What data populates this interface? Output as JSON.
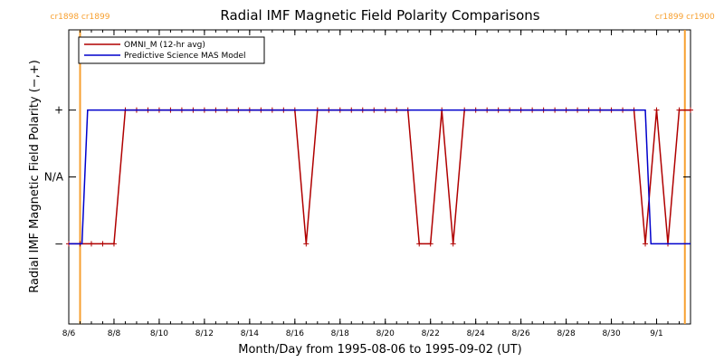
{
  "chart_data": {
    "type": "line",
    "title": "Radial IMF Magnetic Field Polarity Comparisons",
    "xlabel": "Month/Day from 1995-08-06 to 1995-09-02 (UT)",
    "ylabel": "Radial IMF Magnetic Field Polarity (−,+)",
    "xlim": [
      "1995-08-06T00:00",
      "1995-09-02T12:00"
    ],
    "y_ticks": [
      {
        "value": 1,
        "label": "+"
      },
      {
        "value": 0,
        "label": "N/A"
      },
      {
        "value": -1,
        "label": "−"
      }
    ],
    "ylim": [
      -2.2,
      2.2
    ],
    "x_ticks": [
      {
        "date": "1995-08-06",
        "label": "8/6"
      },
      {
        "date": "1995-08-08",
        "label": "8/8"
      },
      {
        "date": "1995-08-10",
        "label": "8/10"
      },
      {
        "date": "1995-08-12",
        "label": "8/12"
      },
      {
        "date": "1995-08-14",
        "label": "8/14"
      },
      {
        "date": "1995-08-16",
        "label": "8/16"
      },
      {
        "date": "1995-08-18",
        "label": "8/18"
      },
      {
        "date": "1995-08-20",
        "label": "8/20"
      },
      {
        "date": "1995-08-22",
        "label": "8/22"
      },
      {
        "date": "1995-08-24",
        "label": "8/24"
      },
      {
        "date": "1995-08-26",
        "label": "8/26"
      },
      {
        "date": "1995-08-28",
        "label": "8/28"
      },
      {
        "date": "1995-08-30",
        "label": "8/30"
      },
      {
        "date": "1995-09-01",
        "label": "9/1"
      }
    ],
    "carrington_markers": [
      {
        "date": "1995-08-06T12:00",
        "left_label": "cr1898",
        "right_label": "cr1899"
      },
      {
        "date": "1995-09-02T06:00",
        "left_label": "cr1899",
        "right_label": "cr1900"
      }
    ],
    "legend": {
      "position": "top-left"
    },
    "series": [
      {
        "name": "OMNI_M (12-hr avg)",
        "color": "#b00000",
        "markers": "plus",
        "points": [
          [
            "1995-08-06T00:00",
            -1
          ],
          [
            "1995-08-06T12:00",
            -1
          ],
          [
            "1995-08-07T00:00",
            -1
          ],
          [
            "1995-08-07T12:00",
            -1
          ],
          [
            "1995-08-08T00:00",
            -1
          ],
          [
            "1995-08-08T12:00",
            1
          ],
          [
            "1995-08-09T00:00",
            1
          ],
          [
            "1995-08-09T12:00",
            1
          ],
          [
            "1995-08-10T00:00",
            1
          ],
          [
            "1995-08-10T12:00",
            1
          ],
          [
            "1995-08-11T00:00",
            1
          ],
          [
            "1995-08-11T12:00",
            1
          ],
          [
            "1995-08-12T00:00",
            1
          ],
          [
            "1995-08-12T12:00",
            1
          ],
          [
            "1995-08-13T00:00",
            1
          ],
          [
            "1995-08-13T12:00",
            1
          ],
          [
            "1995-08-14T00:00",
            1
          ],
          [
            "1995-08-14T12:00",
            1
          ],
          [
            "1995-08-15T00:00",
            1
          ],
          [
            "1995-08-15T12:00",
            1
          ],
          [
            "1995-08-16T00:00",
            1
          ],
          [
            "1995-08-16T12:00",
            -1
          ],
          [
            "1995-08-17T00:00",
            1
          ],
          [
            "1995-08-17T12:00",
            1
          ],
          [
            "1995-08-18T00:00",
            1
          ],
          [
            "1995-08-18T12:00",
            1
          ],
          [
            "1995-08-19T00:00",
            1
          ],
          [
            "1995-08-19T12:00",
            1
          ],
          [
            "1995-08-20T00:00",
            1
          ],
          [
            "1995-08-20T12:00",
            1
          ],
          [
            "1995-08-21T00:00",
            1
          ],
          [
            "1995-08-21T12:00",
            -1
          ],
          [
            "1995-08-22T00:00",
            -1
          ],
          [
            "1995-08-22T12:00",
            1
          ],
          [
            "1995-08-23T00:00",
            -1
          ],
          [
            "1995-08-23T12:00",
            1
          ],
          [
            "1995-08-24T00:00",
            1
          ],
          [
            "1995-08-24T12:00",
            1
          ],
          [
            "1995-08-25T00:00",
            1
          ],
          [
            "1995-08-25T12:00",
            1
          ],
          [
            "1995-08-26T00:00",
            1
          ],
          [
            "1995-08-26T12:00",
            1
          ],
          [
            "1995-08-27T00:00",
            1
          ],
          [
            "1995-08-27T12:00",
            1
          ],
          [
            "1995-08-28T00:00",
            1
          ],
          [
            "1995-08-28T12:00",
            1
          ],
          [
            "1995-08-29T00:00",
            1
          ],
          [
            "1995-08-29T12:00",
            1
          ],
          [
            "1995-08-30T00:00",
            1
          ],
          [
            "1995-08-30T12:00",
            1
          ],
          [
            "1995-08-31T00:00",
            1
          ],
          [
            "1995-08-31T12:00",
            -1
          ],
          [
            "1995-09-01T00:00",
            1
          ],
          [
            "1995-09-01T12:00",
            -1
          ],
          [
            "1995-09-02T00:00",
            1
          ],
          [
            "1995-09-02T12:00",
            1
          ]
        ]
      },
      {
        "name": "Predictive Science MAS Model",
        "color": "#0000cc",
        "markers": "none",
        "points": [
          [
            "1995-08-06T00:00",
            -1
          ],
          [
            "1995-08-06T14:00",
            -1
          ],
          [
            "1995-08-06T20:00",
            1
          ],
          [
            "1995-08-31T12:00",
            1
          ],
          [
            "1995-08-31T18:00",
            -1
          ],
          [
            "1995-09-02T12:00",
            -1
          ]
        ]
      }
    ]
  }
}
